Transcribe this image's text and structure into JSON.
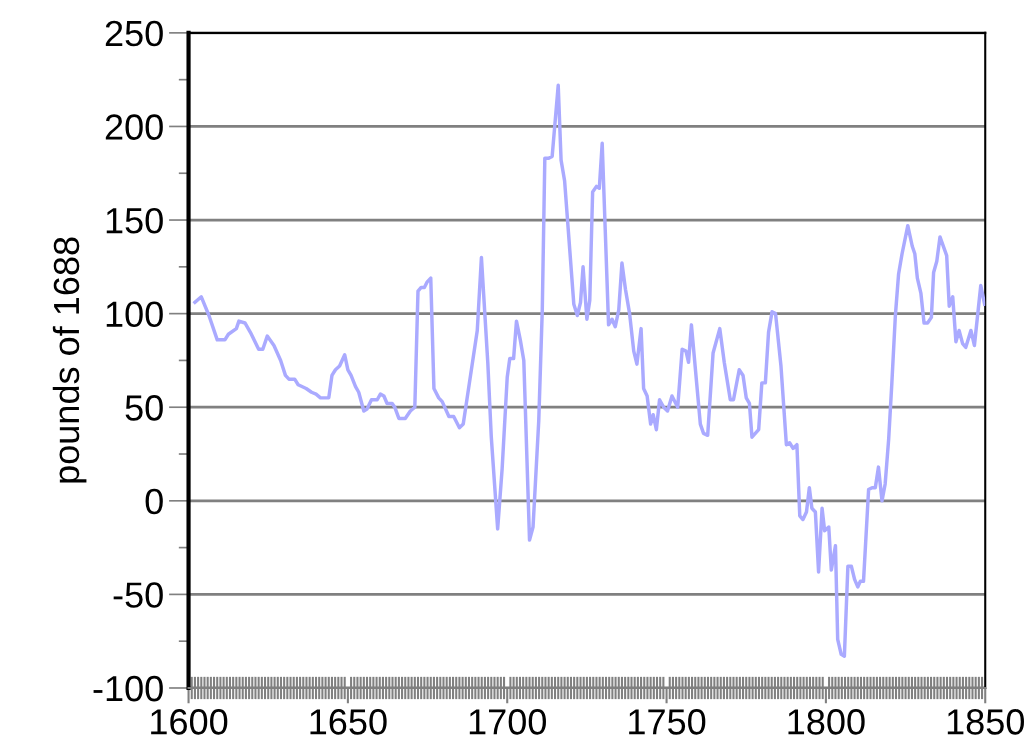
{
  "chart_data": {
    "type": "line",
    "ylabel": "pounds of 1688",
    "xlim": [
      1600,
      1850
    ],
    "xticks": [
      1600,
      1650,
      1700,
      1750,
      1800,
      1850
    ],
    "ylim": [
      -100,
      250
    ],
    "yticks": [
      -100,
      -50,
      0,
      50,
      100,
      150,
      200,
      250
    ],
    "grid": "y",
    "marker": "none",
    "line_style": "solid",
    "series": [
      {
        "color": "#aaaaff",
        "x": [
          1602,
          1604,
          1606.4,
          1609,
          1611.4,
          1612.5,
          1615,
          1615.8,
          1617.7,
          1619.4,
          1622,
          1623.3,
          1624.7,
          1626.8,
          1628.9,
          1630.4,
          1631.5,
          1633.3,
          1634.4,
          1636.9,
          1638.6,
          1640,
          1641.4,
          1644,
          1645,
          1646.1,
          1647.4,
          1649,
          1650,
          1651,
          1652.4,
          1653.4,
          1655,
          1656,
          1657.4,
          1659.2,
          1660.2,
          1661.3,
          1662.3,
          1663.9,
          1664.7,
          1666,
          1668,
          1669.6,
          1671,
          1672,
          1673,
          1674,
          1674.9,
          1676,
          1677,
          1678.5,
          1679.6,
          1681.7,
          1683.2,
          1685,
          1686.2,
          1690.6,
          1691.9,
          1693.9,
          1695,
          1697,
          1698.4,
          1700,
          1700.8,
          1702,
          1702.9,
          1704.1,
          1705.2,
          1707,
          1708.1,
          1709.9,
          1711,
          1711.8,
          1713,
          1714.1,
          1716,
          1716.9,
          1718,
          1720.9,
          1722,
          1723,
          1723.8,
          1725,
          1725.9,
          1726.8,
          1728,
          1728.9,
          1729.8,
          1731.8,
          1732.9,
          1733.9,
          1735,
          1736,
          1737.1,
          1738.4,
          1739.7,
          1740.7,
          1742,
          1742.8,
          1743.9,
          1745,
          1745.8,
          1746.8,
          1747.8,
          1749.1,
          1750.3,
          1751.7,
          1753.5,
          1754.9,
          1756.1,
          1756.9,
          1757.8,
          1760.6,
          1761.6,
          1762.9,
          1764.6,
          1766.7,
          1768.1,
          1770,
          1771,
          1772.8,
          1774,
          1775,
          1776,
          1776.8,
          1778.9,
          1779.9,
          1781,
          1782,
          1783.1,
          1784.2,
          1785.9,
          1787.6,
          1788.6,
          1789.7,
          1790.9,
          1791.8,
          1792.8,
          1793.9,
          1794.8,
          1795.6,
          1796.7,
          1797.7,
          1798.8,
          1799.6,
          1800.9,
          1801.7,
          1803,
          1803.7,
          1804.8,
          1805.8,
          1806.9,
          1808,
          1809,
          1810,
          1810.8,
          1811.8,
          1813.4,
          1814.5,
          1815.5,
          1816.5,
          1817.6,
          1818.6,
          1819.7,
          1820.7,
          1821.8,
          1822.8,
          1823.9,
          1825.7,
          1827.1,
          1827.9,
          1828.7,
          1829.8,
          1830.8,
          1831.9,
          1833.1,
          1833.8,
          1834.8,
          1835.8,
          1837.9,
          1838.7,
          1839.8,
          1840.8,
          1841.8,
          1842.9,
          1843.9,
          1845.5,
          1846.6,
          1848.6,
          1849.8
        ],
        "values": [
          106,
          109,
          99,
          86,
          86,
          89,
          92,
          96,
          95,
          90,
          81,
          81,
          88,
          83,
          75,
          67,
          65,
          65,
          62,
          60,
          58,
          57,
          55,
          55,
          67,
          70,
          72,
          78,
          70,
          67,
          61,
          58,
          48,
          49,
          54,
          54,
          57,
          56,
          52,
          52,
          50,
          44,
          44,
          48,
          50,
          112,
          114,
          114,
          117,
          119,
          60,
          55,
          53,
          45,
          45,
          39,
          41,
          91,
          130,
          74,
          34,
          -15,
          17,
          66,
          76,
          76,
          96,
          86,
          75,
          -21,
          -14,
          43,
          102,
          183,
          183,
          184,
          222,
          182,
          171,
          105,
          99,
          106,
          125,
          97,
          107,
          165,
          168,
          167,
          191,
          94,
          97,
          93,
          102,
          127,
          113,
          100,
          80,
          73,
          92,
          60,
          56,
          41,
          46,
          38,
          54,
          50,
          48,
          56,
          50,
          81,
          80,
          74,
          94,
          41,
          36,
          35,
          79,
          92,
          74,
          54,
          54,
          70,
          67,
          55,
          52,
          34,
          38,
          63,
          63,
          90,
          101,
          100,
          72,
          30,
          31,
          28,
          30,
          -8,
          -10,
          -6,
          7,
          -4,
          -6,
          -38,
          -4,
          -16,
          -14,
          -37,
          -24,
          -74,
          -82,
          -83,
          -35,
          -35,
          -42,
          -46,
          -43,
          -43,
          6,
          7,
          7,
          18,
          0,
          9,
          33,
          63,
          99,
          121,
          132,
          147,
          136,
          132,
          119,
          111,
          95,
          95,
          98,
          122,
          128,
          141,
          131,
          104,
          109,
          85,
          91,
          84,
          82,
          91,
          83,
          115,
          105
        ]
      }
    ]
  }
}
